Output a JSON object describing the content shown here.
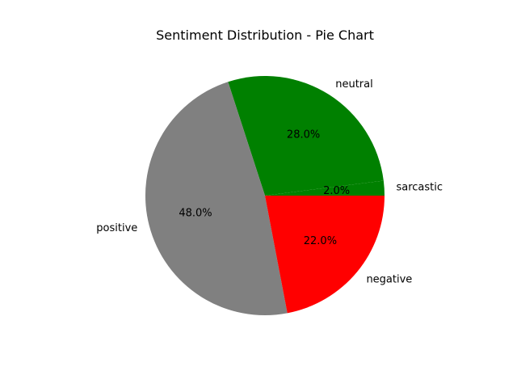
{
  "chart_data": {
    "type": "pie",
    "title": "Sentiment Distribution - Pie Chart",
    "slices": [
      {
        "label": "sarcastic",
        "value": 2.0,
        "percent_label": "2.0%",
        "color": "#008000"
      },
      {
        "label": "neutral",
        "value": 28.0,
        "percent_label": "28.0%",
        "color": "#008000"
      },
      {
        "label": "positive",
        "value": 48.0,
        "percent_label": "48.0%",
        "color": "#808080"
      },
      {
        "label": "negative",
        "value": 22.0,
        "percent_label": "22.0%",
        "color": "#ff0000"
      }
    ]
  }
}
